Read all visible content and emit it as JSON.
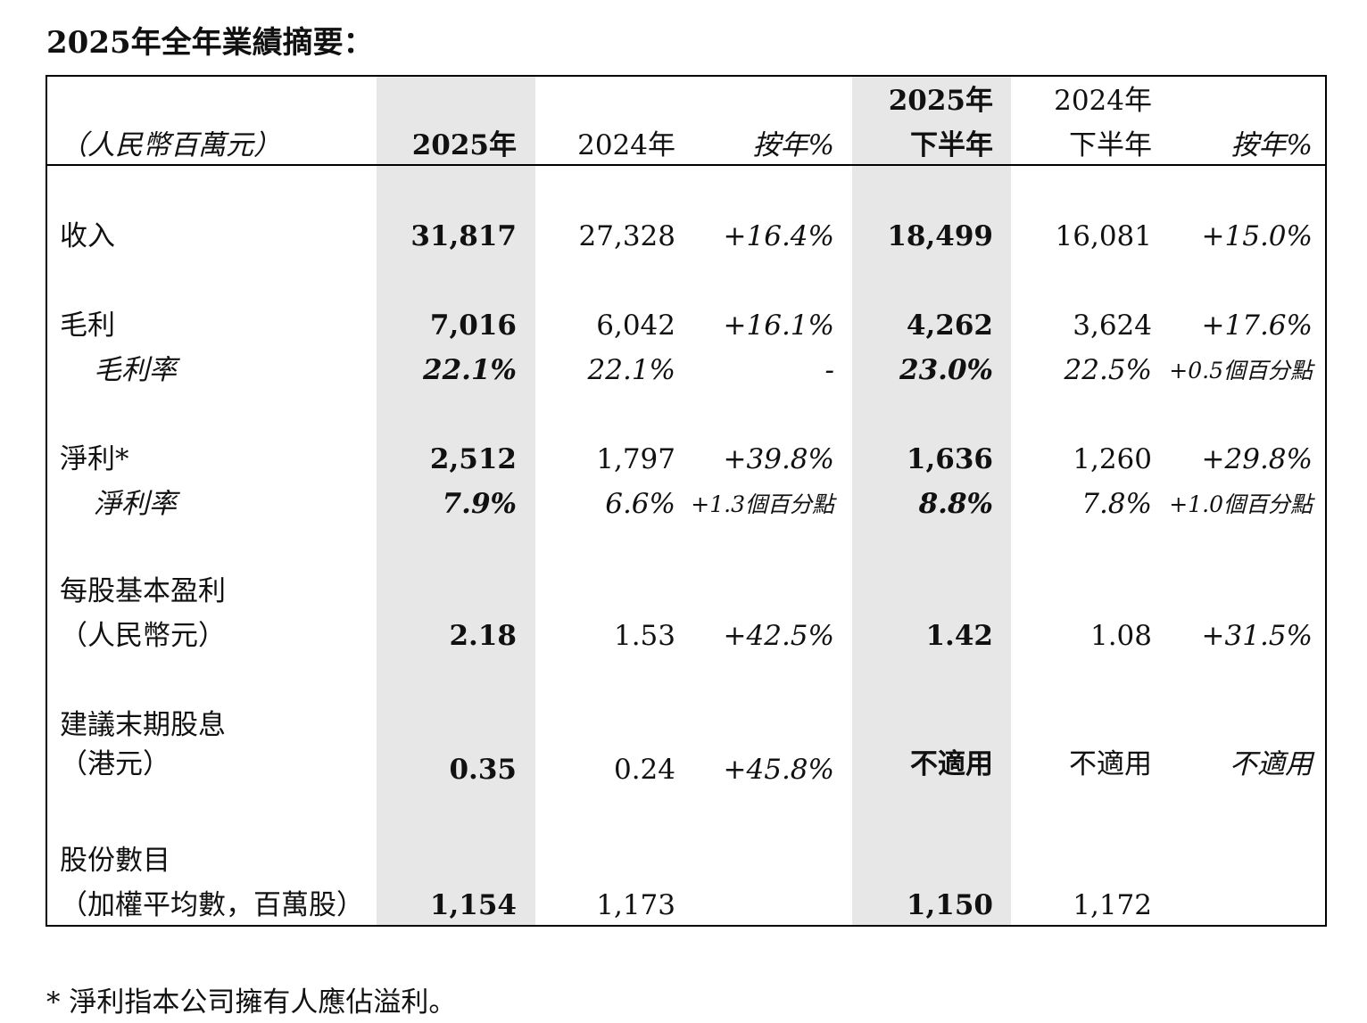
{
  "title": "2025年全年業績摘要：",
  "header": {
    "unit": "（人民幣百萬元）",
    "col1": "2025年",
    "col2": "2024年",
    "col3": "按年%",
    "col4_line1": "2025年",
    "col4_line2": "下半年",
    "col5_line1": "2024年",
    "col5_line2": "下半年",
    "col6": "按年%"
  },
  "rows": {
    "revenue": {
      "label": "收入",
      "v2025": "31,817",
      "v2024": "27,328",
      "yoy": "+16.4%",
      "h2025": "18,499",
      "h2024": "16,081",
      "hyoy": "+15.0%"
    },
    "gross_profit": {
      "label": "毛利",
      "v2025": "7,016",
      "v2024": "6,042",
      "yoy": "+16.1%",
      "h2025": "4,262",
      "h2024": "3,624",
      "hyoy": "+17.6%"
    },
    "gross_margin": {
      "label": "毛利率",
      "v2025": "22.1%",
      "v2024": "22.1%",
      "yoy": "-",
      "h2025": "23.0%",
      "h2024": "22.5%",
      "hyoy": "+0.5個百分點"
    },
    "net_profit": {
      "label": "淨利*",
      "v2025": "2,512",
      "v2024": "1,797",
      "yoy": "+39.8%",
      "h2025": "1,636",
      "h2024": "1,260",
      "hyoy": "+29.8%"
    },
    "net_margin": {
      "label": "淨利率",
      "v2025": "7.9%",
      "v2024": "6.6%",
      "yoy": "+1.3個百分點",
      "h2025": "8.8%",
      "h2024": "7.8%",
      "hyoy": "+1.0個百分點"
    },
    "eps": {
      "label1": "每股基本盈利",
      "label2": "（人民幣元）",
      "v2025": "2.18",
      "v2024": "1.53",
      "yoy": "+42.5%",
      "h2025": "1.42",
      "h2024": "1.08",
      "hyoy": "+31.5%"
    },
    "dividend": {
      "label1": "建議末期股息",
      "label2": "（港元）",
      "v2025": "0.35",
      "v2024": "0.24",
      "yoy": "+45.8%",
      "h2025": "不適用",
      "h2024": "不適用",
      "hyoy": "不適用"
    },
    "shares": {
      "label1": "股份數目",
      "label2": "（加權平均數，百萬股）",
      "v2025": "1,154",
      "v2024": "1,173",
      "h2025": "1,150",
      "h2024": "1,172"
    }
  },
  "footnote": "* 淨利指本公司擁有人應佔溢利。"
}
